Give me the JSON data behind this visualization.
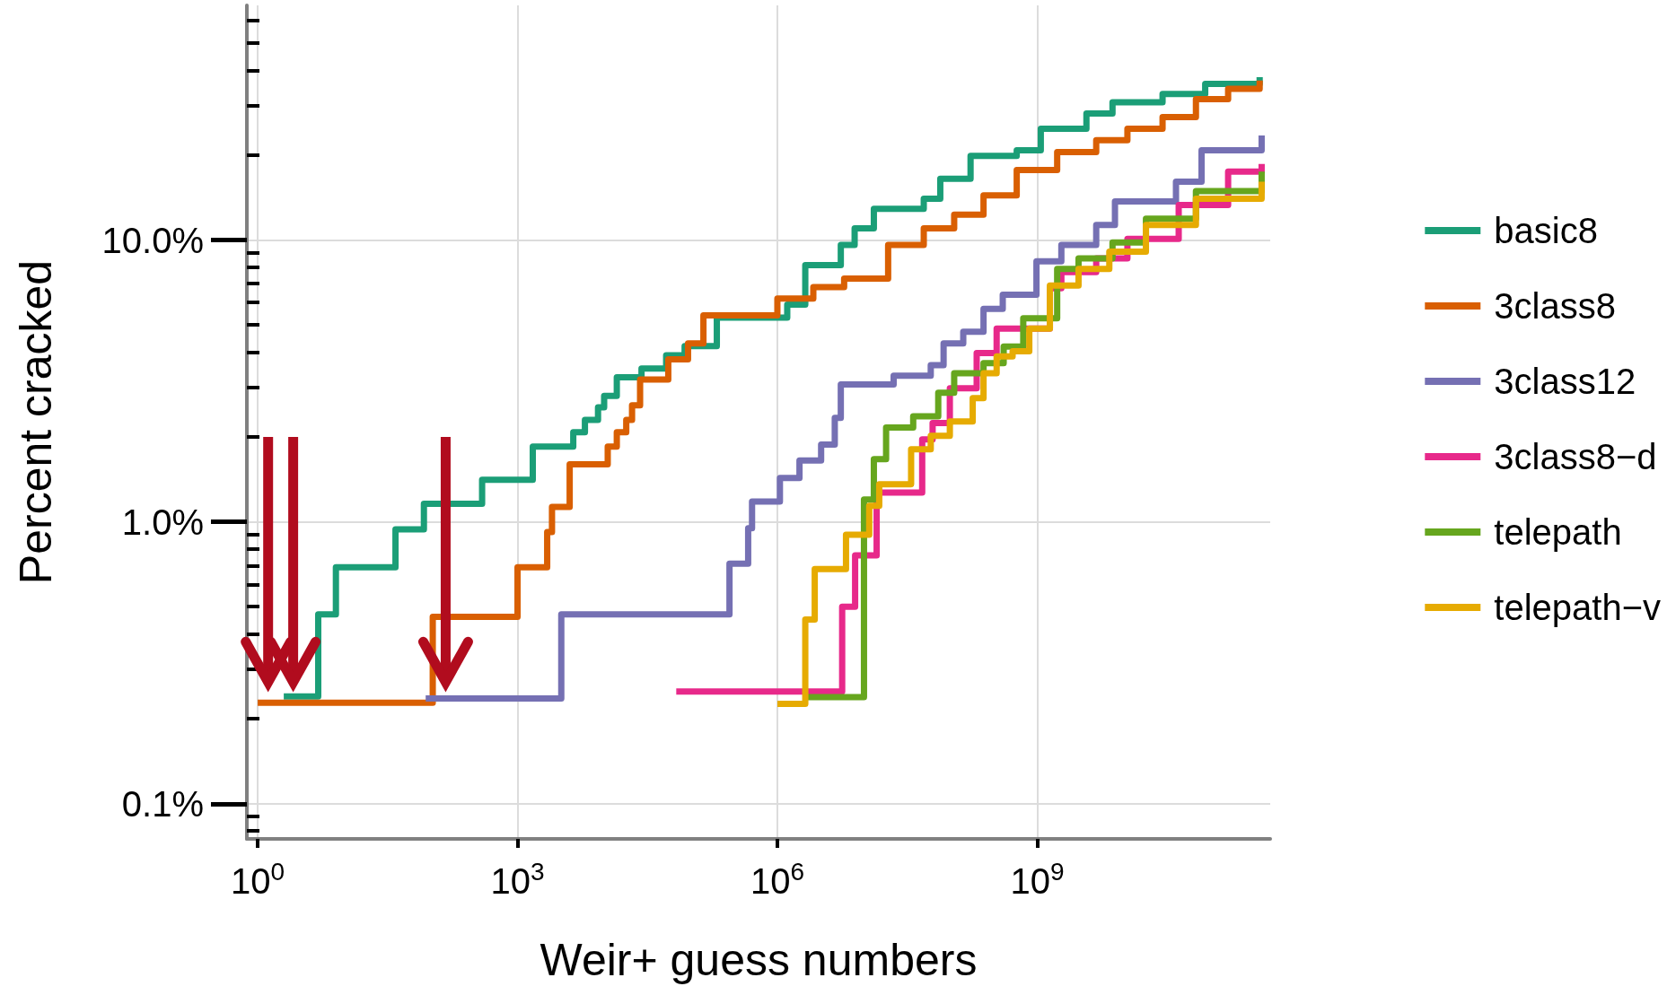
{
  "chart_data": {
    "type": "step",
    "xlabel": "Weir+ guess numbers",
    "ylabel": "Percent cracked",
    "log": "xy",
    "grid": true,
    "legend": "right",
    "marker": "none",
    "line_style": "solid",
    "xlim": [
      0.75,
      490000000000.0
    ],
    "xticks": [
      {
        "value": 1,
        "label": "10$^{0}$"
      },
      {
        "value": 1000,
        "label": "10$^{3}$"
      },
      {
        "value": 1000000,
        "label": "10$^{6}$"
      },
      {
        "value": 1000000000,
        "label": "10$^{9}$"
      }
    ],
    "ylim": [
      0.075,
      68
    ],
    "yticks": [
      {
        "value": 0.08,
        "label": null
      },
      {
        "value": 0.09,
        "label": null
      },
      {
        "value": 0.1,
        "label": "0.1%"
      },
      {
        "value": 0.2,
        "label": null
      },
      {
        "value": 0.3,
        "label": null
      },
      {
        "value": 0.4,
        "label": null
      },
      {
        "value": 0.5,
        "label": null
      },
      {
        "value": 0.6,
        "label": null
      },
      {
        "value": 0.7,
        "label": null
      },
      {
        "value": 0.8,
        "label": null
      },
      {
        "value": 0.9,
        "label": null
      },
      {
        "value": 1,
        "label": "1.0%"
      },
      {
        "value": 2,
        "label": null
      },
      {
        "value": 3,
        "label": null
      },
      {
        "value": 4,
        "label": null
      },
      {
        "value": 5,
        "label": null
      },
      {
        "value": 6,
        "label": null
      },
      {
        "value": 7,
        "label": null
      },
      {
        "value": 8,
        "label": null
      },
      {
        "value": 9,
        "label": null
      },
      {
        "value": 10,
        "label": "10.0%"
      },
      {
        "value": 20,
        "label": null
      },
      {
        "value": 30,
        "label": null
      },
      {
        "value": 40,
        "label": null
      },
      {
        "value": 50,
        "label": null
      },
      {
        "value": 60,
        "label": null
      }
    ],
    "series": [
      {
        "name": "basic8",
        "color": "#1b9e77",
        "x": [
          2,
          5,
          8,
          39,
          83,
          390,
          1500,
          4400,
          6000,
          8500,
          10000,
          14000,
          27000,
          52000,
          85000,
          200000,
          1300000,
          2100000,
          5400000,
          7800000,
          13000000,
          49000000,
          76000000,
          170000000,
          580000000,
          1100000000,
          3700000000,
          7400000000,
          28000000000,
          87000000000,
          370000000000
        ],
        "values": [
          0.24,
          0.47,
          0.69,
          0.94,
          1.16,
          1.41,
          1.85,
          2.08,
          2.3,
          2.55,
          2.8,
          3.26,
          3.5,
          3.9,
          4.2,
          5.3,
          5.9,
          8.15,
          9.6,
          11.0,
          12.9,
          14.0,
          16.5,
          19.9,
          20.8,
          24.8,
          28.1,
          30.8,
          33,
          35.8,
          37.8
        ]
      },
      {
        "name": "3class8",
        "color": "#d95f02",
        "x": [
          1,
          105,
          1000,
          2200,
          2500,
          4000,
          11000,
          14000,
          18000,
          21000,
          26000,
          55000,
          93000,
          140000,
          1000000,
          2600000,
          5900000,
          19000000,
          49000000,
          110000000,
          240000000,
          580000000,
          1700000000,
          4800000000,
          11000000000,
          28000000000,
          68000000000,
          160000000000,
          370000000000
        ],
        "values": [
          0.228,
          0.46,
          0.69,
          0.92,
          1.13,
          1.6,
          1.85,
          2.08,
          2.3,
          2.59,
          3.2,
          3.77,
          4.3,
          5.4,
          6.2,
          6.8,
          7.3,
          9.6,
          11.0,
          12.3,
          14.4,
          17.7,
          20.5,
          22.6,
          24.8,
          27.3,
          31.6,
          34.4,
          36.8
        ]
      },
      {
        "name": "3class12",
        "color": "#7570b3",
        "x": [
          87,
          3200,
          280000,
          460000,
          510000,
          1070000,
          1800000,
          3200000,
          4600000,
          5400000,
          22000000,
          59000000,
          83000000,
          140000000,
          240000000,
          400000000,
          980000000,
          1900000000,
          4800000000,
          7900000000,
          40000000000,
          79000000000,
          390000000000
        ],
        "values": [
          0.236,
          0.47,
          0.71,
          0.95,
          1.18,
          1.43,
          1.65,
          1.88,
          2.34,
          3.07,
          3.3,
          3.6,
          4.3,
          4.73,
          5.7,
          6.4,
          8.4,
          9.6,
          11.3,
          13.7,
          16.1,
          20.8,
          23.5
        ]
      },
      {
        "name": "3class8−d",
        "color": "#e7298a",
        "x": [
          68000,
          5600000,
          7900000,
          14000000,
          47000000,
          62000000,
          98000000,
          200000000,
          340000000,
          1400000000,
          1900000000,
          4800000000,
          11000000000,
          43000000000,
          160000000000,
          390000000000
        ],
        "values": [
          0.25,
          0.5,
          0.76,
          1.27,
          1.96,
          2.24,
          2.98,
          3.97,
          4.85,
          6.74,
          7.7,
          8.6,
          10.1,
          13.3,
          17.5,
          18.6
        ]
      },
      {
        "name": "telepath",
        "color": "#66a61e",
        "x": [
          2200000,
          10000000,
          13000000,
          18000000,
          37000000,
          72000000,
          110000000,
          240000000,
          410000000,
          690000000,
          1700000000,
          3000000000,
          7400000000,
          18000000000,
          68000000000,
          390000000000
        ],
        "values": [
          0.239,
          1.2,
          1.67,
          2.16,
          2.37,
          2.87,
          3.37,
          3.66,
          4.19,
          5.28,
          7.9,
          8.6,
          9.8,
          11.9,
          14.9,
          17.5
        ]
      },
      {
        "name": "telepath−v",
        "color": "#e6ab02",
        "x": [
          1000000,
          2100000,
          2700000,
          6200000,
          11500000,
          15000000,
          35000000,
          59000000,
          98000000,
          180000000,
          240000000,
          340000000,
          520000000,
          810000000,
          1400000000,
          3000000000,
          6800000000,
          18000000000,
          68000000000,
          390000000000
        ],
        "values": [
          0.226,
          0.45,
          0.68,
          0.9,
          1.14,
          1.36,
          1.81,
          2.02,
          2.27,
          2.75,
          3.37,
          3.86,
          4.03,
          4.85,
          6.9,
          7.9,
          9.1,
          11.3,
          14.0,
          16.1
        ]
      }
    ]
  }
}
